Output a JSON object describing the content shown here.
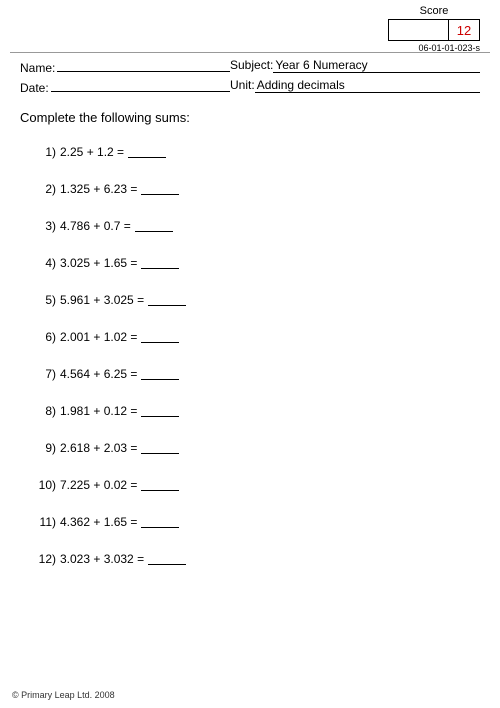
{
  "score": {
    "label": "Score",
    "value": "12"
  },
  "doc_code": "06-01-01-023-s",
  "fields": {
    "name_label": "Name:",
    "date_label": "Date:",
    "subject_label": "Subject:",
    "subject_value": " Year 6 Numeracy",
    "unit_label": "Unit:",
    "unit_value": " Adding decimals"
  },
  "instruction": "Complete the following sums:",
  "problems": [
    {
      "num": "1)",
      "expr": "2.25 + 1.2 ="
    },
    {
      "num": "2)",
      "expr": "1.325 + 6.23 ="
    },
    {
      "num": "3)",
      "expr": "4.786 + 0.7 ="
    },
    {
      "num": "4)",
      "expr": "3.025 + 1.65 ="
    },
    {
      "num": "5)",
      "expr": "5.961 + 3.025 ="
    },
    {
      "num": "6)",
      "expr": "2.001 + 1.02 ="
    },
    {
      "num": "7)",
      "expr": "4.564 + 6.25 ="
    },
    {
      "num": "8)",
      "expr": "1.981 + 0.12 ="
    },
    {
      "num": "9)",
      "expr": "2.618 + 2.03 ="
    },
    {
      "num": "10)",
      "expr": "7.225 + 0.02 ="
    },
    {
      "num": "11)",
      "expr": "4.362 + 1.65 ="
    },
    {
      "num": "12)",
      "expr": "3.023 + 3.032 ="
    }
  ],
  "footer": "© Primary Leap Ltd. 2008"
}
